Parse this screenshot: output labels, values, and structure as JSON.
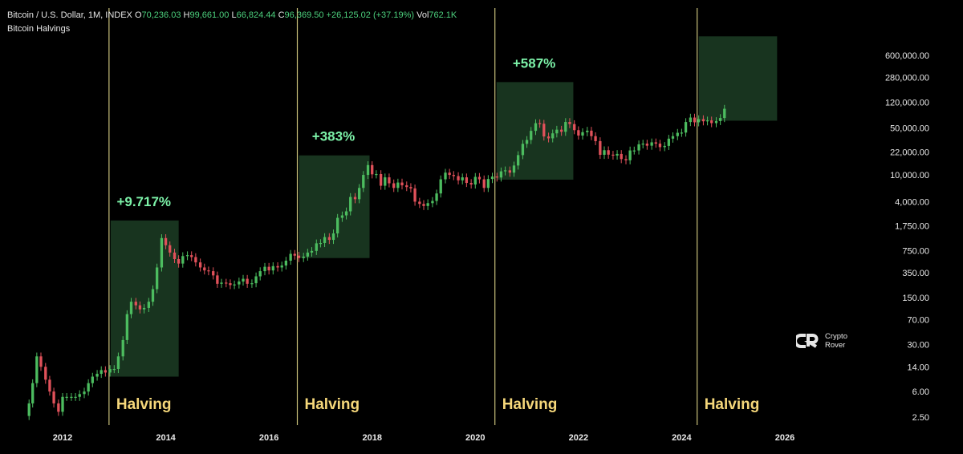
{
  "header": {
    "symbol": "Bitcoin / U.S. Dollar, 1M, INDEX",
    "o_label": "O",
    "o_value": "70,236.03",
    "h_label": "H",
    "h_value": "99,661.00",
    "l_label": "L",
    "l_value": "66,824.44",
    "c_label": "C",
    "c_value": "96,369.50",
    "change": "+26,125.02 (+37.19%)",
    "vol_label": "Vol",
    "vol_value": "762.1K",
    "indicator": "Bitcoin Halvings"
  },
  "logo": {
    "line1": "Crypto",
    "line2": "Rover"
  },
  "chart_data": {
    "type": "candlestick",
    "y_scale": "log",
    "y_ticks": [
      {
        "label": "600,000.00",
        "value": 600000
      },
      {
        "label": "280,000.00",
        "value": 280000
      },
      {
        "label": "120,000.00",
        "value": 120000
      },
      {
        "label": "50,000.00",
        "value": 50000
      },
      {
        "label": "22,000.00",
        "value": 22000
      },
      {
        "label": "10,000.00",
        "value": 10000
      },
      {
        "label": "4,000.00",
        "value": 4000
      },
      {
        "label": "1,750.00",
        "value": 1750
      },
      {
        "label": "750.00",
        "value": 750
      },
      {
        "label": "350.00",
        "value": 350
      },
      {
        "label": "150.00",
        "value": 150
      },
      {
        "label": "70.00",
        "value": 70
      },
      {
        "label": "30.00",
        "value": 30
      },
      {
        "label": "14.00",
        "value": 14
      },
      {
        "label": "6.00",
        "value": 6
      },
      {
        "label": "2.50",
        "value": 2.5
      }
    ],
    "x_ticks": [
      "2012",
      "2014",
      "2016",
      "2018",
      "2020",
      "2022",
      "2024",
      "2026"
    ],
    "x_range": [
      2011.2,
      2026.7
    ],
    "halvings": [
      {
        "label": "Halving",
        "year": 2012.9,
        "gain": "+9.717%",
        "box_low": 10,
        "box_high": 2100,
        "box_end": 2014.25
      },
      {
        "label": "Halving",
        "year": 2016.55,
        "gain": "+383%",
        "box_low": 580,
        "box_high": 19500,
        "box_end": 2017.95
      },
      {
        "label": "Halving",
        "year": 2020.38,
        "gain": "+587%",
        "box_low": 8500,
        "box_high": 240000,
        "box_end": 2021.9
      },
      {
        "label": "Halving",
        "year": 2024.3,
        "gain": "",
        "box_low": 64000,
        "box_high": 1150000,
        "box_end": 2025.85
      }
    ],
    "colors": {
      "up": "#4cbc5f",
      "down": "#e0515a",
      "box": "#1b3a22",
      "line": "#c9c07a",
      "label": "#f5d77a",
      "gain": "#7cf2a8"
    },
    "close_path": [
      [
        2011.25,
        2.6
      ],
      [
        2011.35,
        4
      ],
      [
        2011.42,
        8
      ],
      [
        2011.5,
        20
      ],
      [
        2011.58,
        14
      ],
      [
        2011.67,
        9
      ],
      [
        2011.75,
        6
      ],
      [
        2011.83,
        4
      ],
      [
        2011.92,
        3
      ],
      [
        2012.0,
        5
      ],
      [
        2012.08,
        5
      ],
      [
        2012.17,
        5
      ],
      [
        2012.25,
        5
      ],
      [
        2012.33,
        5.5
      ],
      [
        2012.42,
        6
      ],
      [
        2012.5,
        8
      ],
      [
        2012.58,
        10
      ],
      [
        2012.67,
        11
      ],
      [
        2012.75,
        12.5
      ],
      [
        2012.83,
        11.5
      ],
      [
        2012.92,
        13
      ],
      [
        2013.0,
        13
      ],
      [
        2013.08,
        20
      ],
      [
        2013.17,
        35
      ],
      [
        2013.25,
        85
      ],
      [
        2013.33,
        130
      ],
      [
        2013.42,
        115
      ],
      [
        2013.5,
        100
      ],
      [
        2013.58,
        105
      ],
      [
        2013.67,
        130
      ],
      [
        2013.75,
        200
      ],
      [
        2013.83,
        420
      ],
      [
        2013.92,
        1150
      ],
      [
        2014.0,
        900
      ],
      [
        2014.08,
        700
      ],
      [
        2014.17,
        560
      ],
      [
        2014.25,
        480
      ],
      [
        2014.33,
        620
      ],
      [
        2014.42,
        640
      ],
      [
        2014.5,
        600
      ],
      [
        2014.58,
        500
      ],
      [
        2014.67,
        420
      ],
      [
        2014.75,
        380
      ],
      [
        2014.83,
        370
      ],
      [
        2014.92,
        320
      ],
      [
        2015.0,
        240
      ],
      [
        2015.08,
        250
      ],
      [
        2015.17,
        245
      ],
      [
        2015.25,
        230
      ],
      [
        2015.33,
        235
      ],
      [
        2015.42,
        260
      ],
      [
        2015.5,
        285
      ],
      [
        2015.58,
        240
      ],
      [
        2015.67,
        245
      ],
      [
        2015.75,
        310
      ],
      [
        2015.83,
        370
      ],
      [
        2015.92,
        430
      ],
      [
        2016.0,
        380
      ],
      [
        2016.08,
        440
      ],
      [
        2016.17,
        420
      ],
      [
        2016.25,
        450
      ],
      [
        2016.33,
        530
      ],
      [
        2016.42,
        670
      ],
      [
        2016.5,
        630
      ],
      [
        2016.58,
        580
      ],
      [
        2016.67,
        610
      ],
      [
        2016.75,
        700
      ],
      [
        2016.83,
        740
      ],
      [
        2016.92,
        960
      ],
      [
        2017.0,
        970
      ],
      [
        2017.08,
        1190
      ],
      [
        2017.17,
        1080
      ],
      [
        2017.25,
        1350
      ],
      [
        2017.33,
        2300
      ],
      [
        2017.42,
        2500
      ],
      [
        2017.5,
        2870
      ],
      [
        2017.58,
        4700
      ],
      [
        2017.67,
        4350
      ],
      [
        2017.75,
        6400
      ],
      [
        2017.83,
        10000
      ],
      [
        2017.92,
        14000
      ],
      [
        2018.0,
        10200
      ],
      [
        2018.08,
        10300
      ],
      [
        2018.17,
        6900
      ],
      [
        2018.25,
        9200
      ],
      [
        2018.33,
        7500
      ],
      [
        2018.42,
        6400
      ],
      [
        2018.5,
        7700
      ],
      [
        2018.58,
        7000
      ],
      [
        2018.67,
        6600
      ],
      [
        2018.75,
        6300
      ],
      [
        2018.83,
        4000
      ],
      [
        2018.92,
        3700
      ],
      [
        2019.0,
        3450
      ],
      [
        2019.08,
        3800
      ],
      [
        2019.17,
        4100
      ],
      [
        2019.25,
        5300
      ],
      [
        2019.33,
        8600
      ],
      [
        2019.42,
        10800
      ],
      [
        2019.5,
        10000
      ],
      [
        2019.58,
        9600
      ],
      [
        2019.67,
        8300
      ],
      [
        2019.75,
        9200
      ],
      [
        2019.83,
        7600
      ],
      [
        2019.92,
        7200
      ],
      [
        2020.0,
        9350
      ],
      [
        2020.08,
        8600
      ],
      [
        2020.17,
        6400
      ],
      [
        2020.25,
        8700
      ],
      [
        2020.33,
        9450
      ],
      [
        2020.42,
        9150
      ],
      [
        2020.5,
        11300
      ],
      [
        2020.58,
        11700
      ],
      [
        2020.67,
        10800
      ],
      [
        2020.75,
        13800
      ],
      [
        2020.83,
        19700
      ],
      [
        2020.92,
        29000
      ],
      [
        2021.0,
        33100
      ],
      [
        2021.08,
        45200
      ],
      [
        2021.17,
        58800
      ],
      [
        2021.25,
        57700
      ],
      [
        2021.33,
        37300
      ],
      [
        2021.42,
        35000
      ],
      [
        2021.5,
        41500
      ],
      [
        2021.58,
        47100
      ],
      [
        2021.67,
        43800
      ],
      [
        2021.75,
        61300
      ],
      [
        2021.83,
        57000
      ],
      [
        2021.92,
        46300
      ],
      [
        2022.0,
        38500
      ],
      [
        2022.08,
        43200
      ],
      [
        2022.17,
        45500
      ],
      [
        2022.25,
        37700
      ],
      [
        2022.33,
        31800
      ],
      [
        2022.42,
        19900
      ],
      [
        2022.5,
        23300
      ],
      [
        2022.58,
        20000
      ],
      [
        2022.67,
        19400
      ],
      [
        2022.75,
        20500
      ],
      [
        2022.83,
        17200
      ],
      [
        2022.92,
        16500
      ],
      [
        2023.0,
        23100
      ],
      [
        2023.08,
        23100
      ],
      [
        2023.17,
        28500
      ],
      [
        2023.25,
        29200
      ],
      [
        2023.33,
        27200
      ],
      [
        2023.42,
        30500
      ],
      [
        2023.5,
        29200
      ],
      [
        2023.58,
        25900
      ],
      [
        2023.67,
        27000
      ],
      [
        2023.75,
        34600
      ],
      [
        2023.83,
        37700
      ],
      [
        2023.92,
        42300
      ],
      [
        2024.0,
        42600
      ],
      [
        2024.08,
        61200
      ],
      [
        2024.17,
        71300
      ],
      [
        2024.25,
        60600
      ],
      [
        2024.33,
        67500
      ],
      [
        2024.42,
        62700
      ],
      [
        2024.5,
        64600
      ],
      [
        2024.58,
        58900
      ],
      [
        2024.67,
        63300
      ],
      [
        2024.75,
        70200
      ],
      [
        2024.83,
        96400
      ]
    ]
  }
}
